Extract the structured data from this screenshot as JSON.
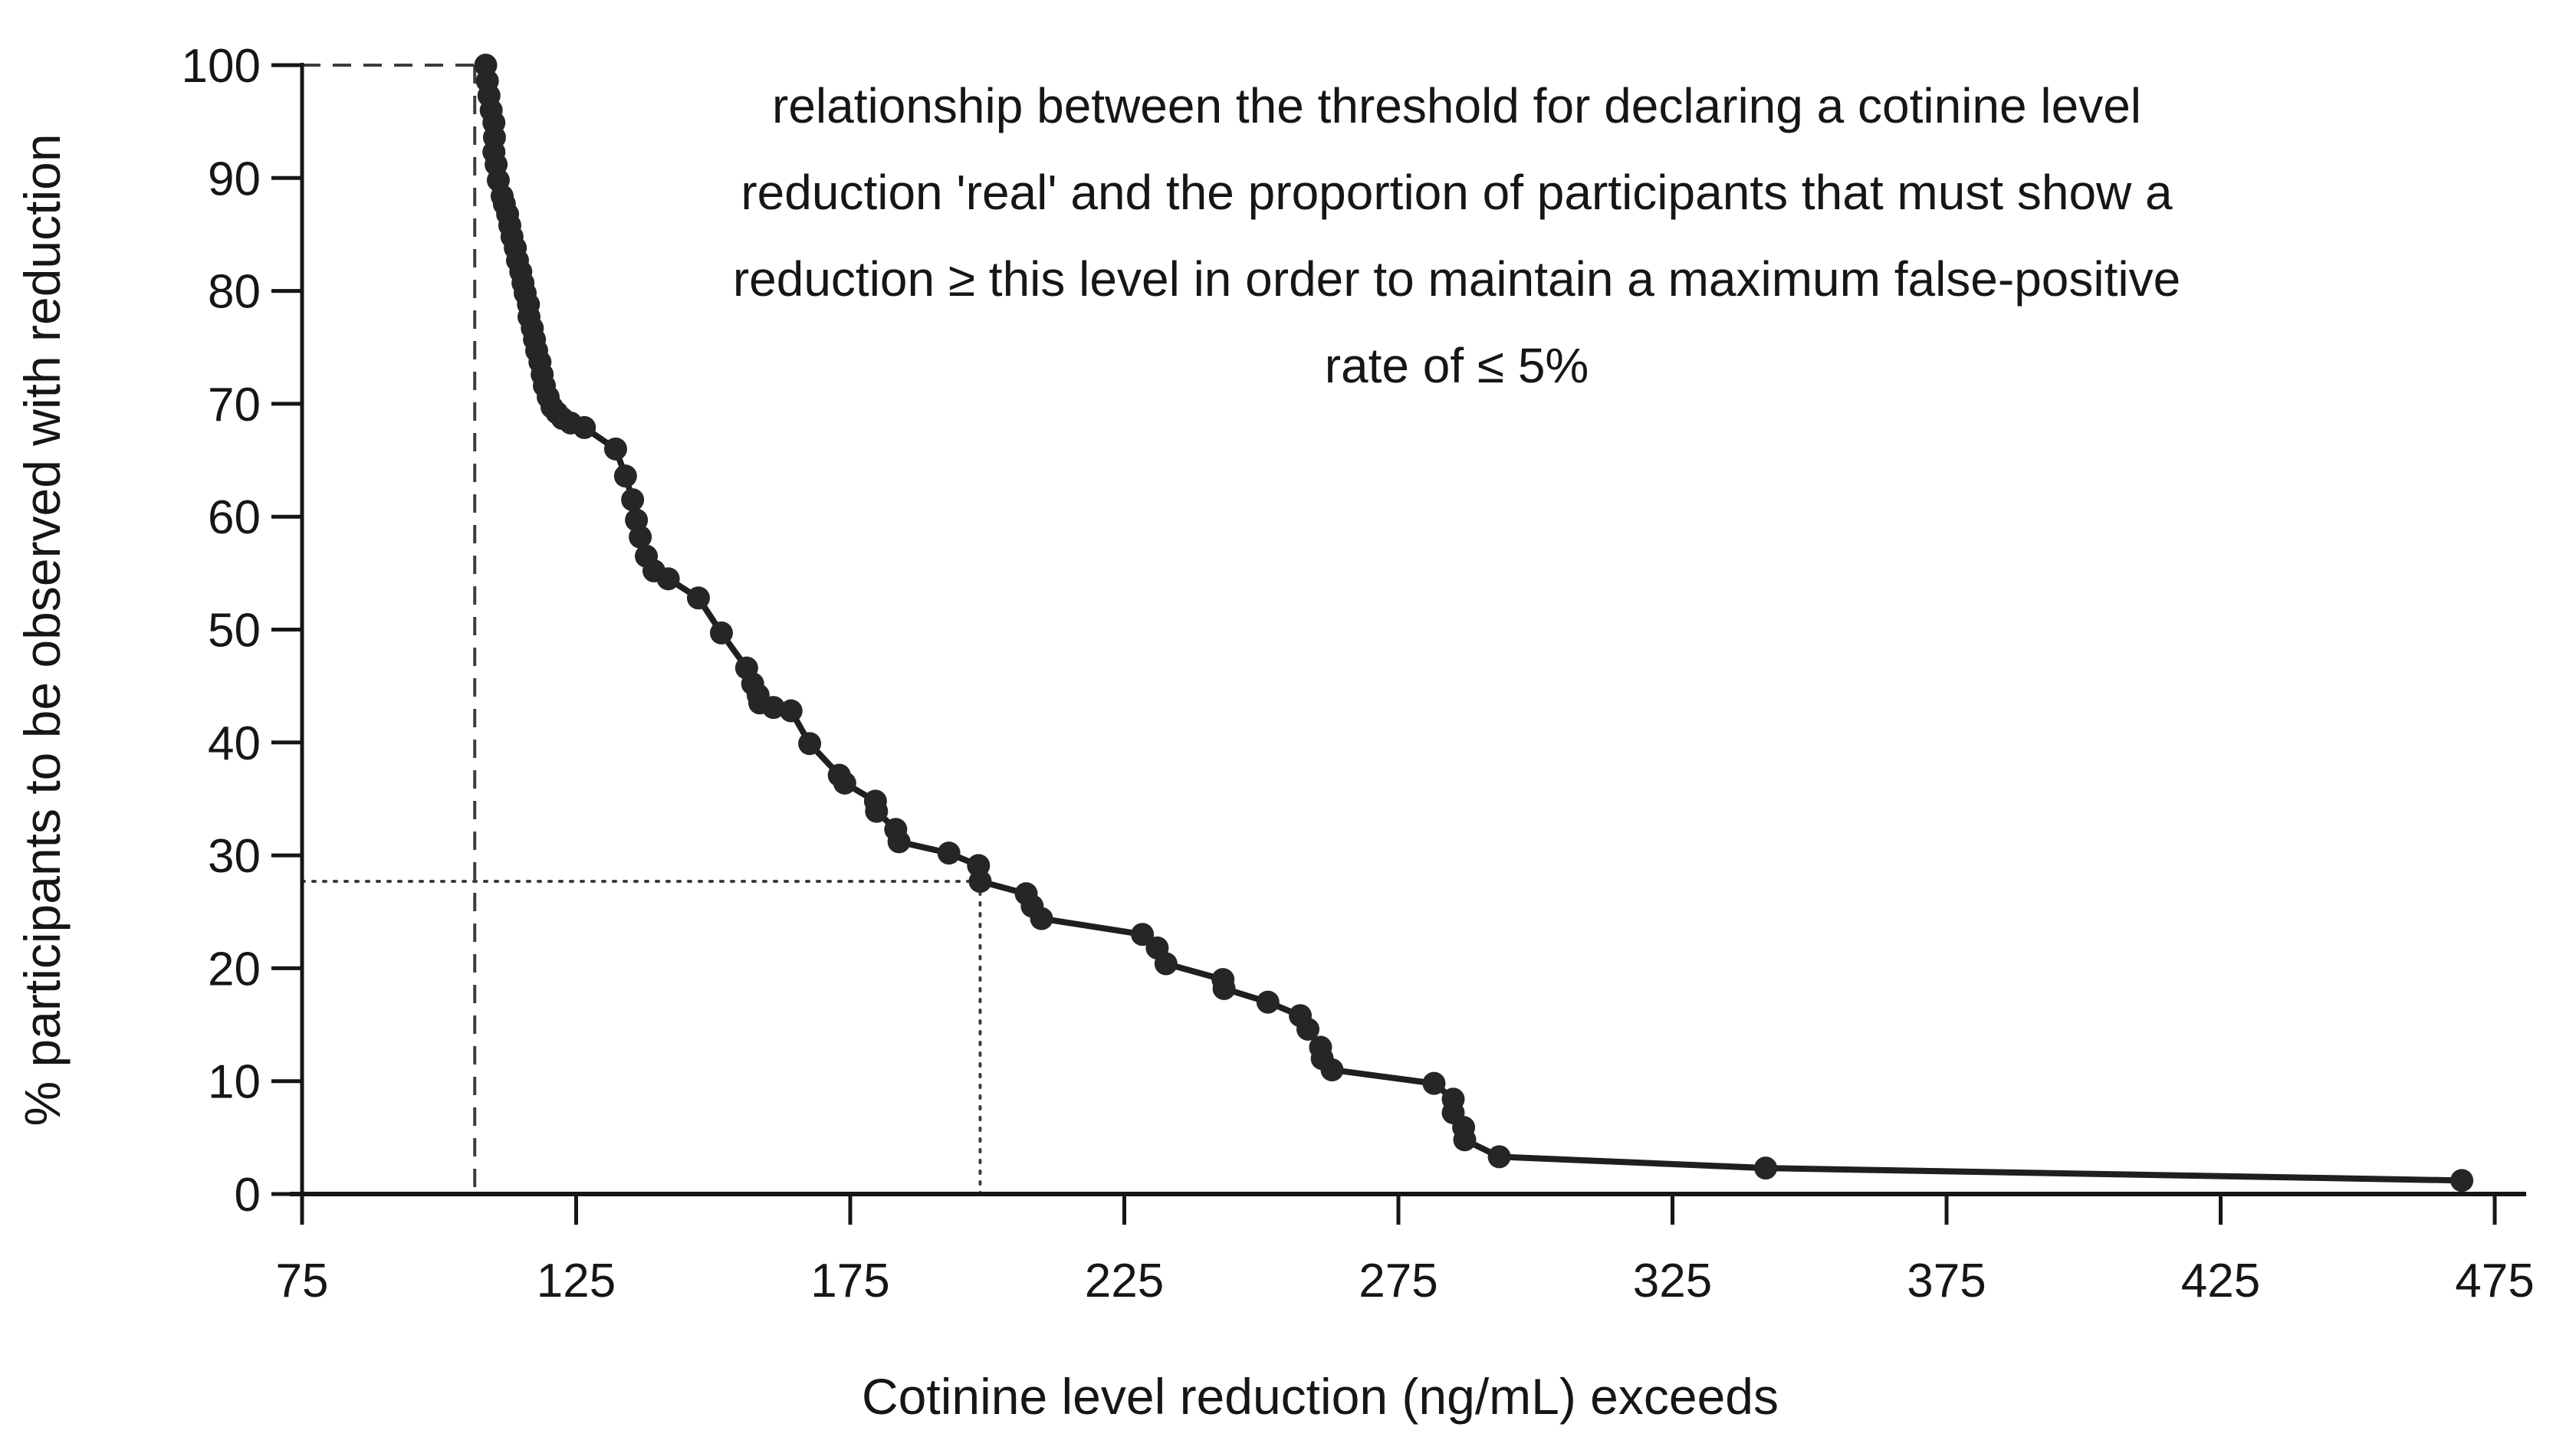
{
  "figure": {
    "background": "#ffffff",
    "title_lines": [
      "relationship between the threshold for declaring a cotinine level",
      "reduction 'real' and the proportion of participants that must show a",
      "reduction ≥ this level in order to maintain a maximum false-positive",
      "rate of ≤ 5%"
    ],
    "x_axis": {
      "label": "Cotinine level reduction (ng/mL) exceeds",
      "ticks": [
        75,
        125,
        175,
        225,
        275,
        325,
        375,
        425,
        475
      ]
    },
    "y_axis": {
      "label": "% participants to be observed with reduction",
      "ticks": [
        0,
        10,
        20,
        30,
        40,
        50,
        60,
        70,
        80,
        90,
        100
      ]
    },
    "colors": {
      "ink": "#161616",
      "line": "#1f1f1f",
      "marker": "#262626",
      "reference": "#3c3c3c"
    }
  },
  "chart_data": {
    "type": "scatter",
    "title": "relationship between the threshold for declaring a cotinine level reduction 'real' and the proportion of participants that must show a reduction ≥ this level in order to maintain a maximum false-positive rate of ≤ 5%",
    "xlabel": "Cotinine level reduction (ng/mL) exceeds",
    "ylabel": "% participants to be observed with reduction",
    "xlim": [
      75,
      475
    ],
    "ylim": [
      0,
      100
    ],
    "x_ticks": [
      75,
      125,
      175,
      225,
      275,
      325,
      375,
      425,
      475
    ],
    "y_ticks": [
      0,
      10,
      20,
      30,
      40,
      50,
      60,
      70,
      80,
      90,
      100
    ],
    "grid": false,
    "legend": "none",
    "marker_connected_by_line": true,
    "series": [
      {
        "name": "% participants to be observed with reduction",
        "points": [
          [
            108.5,
            100.0
          ],
          [
            108.8,
            98.6
          ],
          [
            109.1,
            97.3
          ],
          [
            109.5,
            96.0
          ],
          [
            110.0,
            94.9
          ],
          [
            110.1,
            93.6
          ],
          [
            110.0,
            92.3
          ],
          [
            110.4,
            91.2
          ],
          [
            110.8,
            89.8
          ],
          [
            111.5,
            88.4
          ],
          [
            111.9,
            87.7
          ],
          [
            112.5,
            86.8
          ],
          [
            112.9,
            85.8
          ],
          [
            113.3,
            84.8
          ],
          [
            113.9,
            83.8
          ],
          [
            114.3,
            82.7
          ],
          [
            114.9,
            81.7
          ],
          [
            115.3,
            80.7
          ],
          [
            115.7,
            79.8
          ],
          [
            116.3,
            78.8
          ],
          [
            116.4,
            77.7
          ],
          [
            117.0,
            76.7
          ],
          [
            117.4,
            75.7
          ],
          [
            117.8,
            74.7
          ],
          [
            118.4,
            73.7
          ],
          [
            118.8,
            72.6
          ],
          [
            119.2,
            71.6
          ],
          [
            119.9,
            70.6
          ],
          [
            120.6,
            69.7
          ],
          [
            121.5,
            69.2
          ],
          [
            122.5,
            68.7
          ],
          [
            124.0,
            68.3
          ],
          [
            126.5,
            67.9
          ],
          [
            132.2,
            66.0
          ],
          [
            134.0,
            63.6
          ],
          [
            135.3,
            61.5
          ],
          [
            136.0,
            59.7
          ],
          [
            136.7,
            58.2
          ],
          [
            137.8,
            56.5
          ],
          [
            139.2,
            55.2
          ],
          [
            141.8,
            54.5
          ],
          [
            147.3,
            52.8
          ],
          [
            151.5,
            49.7
          ],
          [
            156.1,
            46.6
          ],
          [
            157.2,
            45.2
          ],
          [
            158.2,
            44.2
          ],
          [
            158.5,
            43.5
          ],
          [
            161.0,
            43.1
          ],
          [
            164.2,
            42.8
          ],
          [
            167.6,
            39.9
          ],
          [
            173.0,
            37.1
          ],
          [
            174.0,
            36.4
          ],
          [
            179.6,
            34.8
          ],
          [
            179.8,
            33.9
          ],
          [
            183.3,
            32.3
          ],
          [
            183.9,
            31.2
          ],
          [
            193.0,
            30.2
          ],
          [
            198.4,
            29.1
          ],
          [
            198.7,
            27.7
          ],
          [
            207.1,
            26.6
          ],
          [
            208.2,
            25.5
          ],
          [
            209.9,
            24.4
          ],
          [
            228.3,
            23.0
          ],
          [
            231.0,
            21.8
          ],
          [
            232.6,
            20.4
          ],
          [
            243.0,
            19.0
          ],
          [
            243.2,
            18.2
          ],
          [
            251.2,
            17.0
          ],
          [
            257.1,
            15.8
          ],
          [
            258.5,
            14.6
          ],
          [
            260.8,
            13.0
          ],
          [
            261.1,
            12.0
          ],
          [
            262.9,
            11.0
          ],
          [
            281.5,
            9.8
          ],
          [
            285.0,
            8.4
          ],
          [
            285.0,
            7.2
          ],
          [
            286.9,
            5.9
          ],
          [
            287.1,
            4.8
          ],
          [
            293.4,
            3.3
          ],
          [
            342.0,
            2.3
          ],
          [
            469.0,
            1.2
          ]
        ]
      }
    ],
    "reference_lines": [
      {
        "style": "dashed",
        "x": 106.5,
        "y": 100,
        "note": "dashed crosshair marking first threshold at ~107 ng/mL where 100% of participants required"
      },
      {
        "style": "dotted",
        "x": 198.7,
        "y": 27.7,
        "note": "dotted crosshair marking threshold ~199 ng/mL where ~28% of participants required"
      }
    ]
  }
}
